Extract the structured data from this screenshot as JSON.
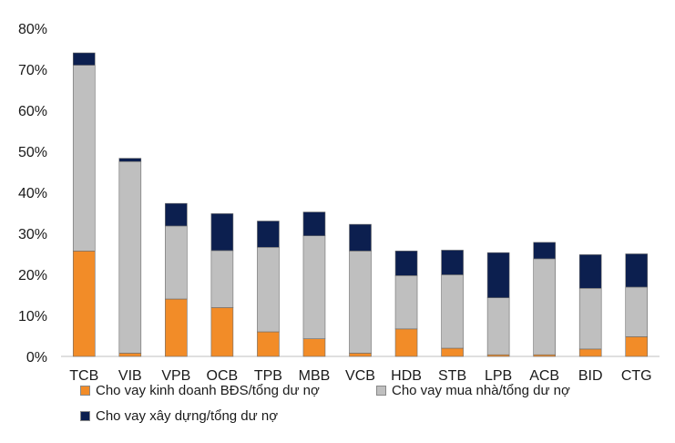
{
  "chart_data": {
    "type": "bar",
    "stacked": true,
    "categories": [
      "TCB",
      "VIB",
      "VPB",
      "OCB",
      "TPB",
      "MBB",
      "VCB",
      "HDB",
      "STB",
      "LPB",
      "ACB",
      "BID",
      "CTG"
    ],
    "series": [
      {
        "name": "Cho vay kinh doanh BĐS/tổng dư nợ",
        "color": "#f28c28",
        "values": [
          25.7,
          0.8,
          14.0,
          11.9,
          6.0,
          4.3,
          0.8,
          6.7,
          2.0,
          0.4,
          0.4,
          1.8,
          4.8
        ]
      },
      {
        "name": "Cho vay mua nhà/tổng dư nợ",
        "color": "#bfbfbf",
        "values": [
          45.3,
          46.7,
          17.8,
          13.9,
          20.6,
          25.1,
          24.9,
          13.0,
          17.9,
          13.9,
          23.4,
          14.8,
          12.1
        ]
      },
      {
        "name": "Cho vay xây dựng/tổng dư nợ",
        "color": "#0c1f4f",
        "values": [
          3.0,
          0.8,
          5.5,
          9.0,
          6.4,
          5.8,
          6.5,
          6.0,
          6.0,
          11.0,
          4.0,
          8.2,
          8.1
        ]
      }
    ],
    "ylim": [
      0,
      80
    ],
    "yticks": [
      "0%",
      "10%",
      "20%",
      "30%",
      "40%",
      "50%",
      "60%",
      "70%",
      "80%"
    ],
    "grid": false,
    "legend_position": "bottom"
  }
}
